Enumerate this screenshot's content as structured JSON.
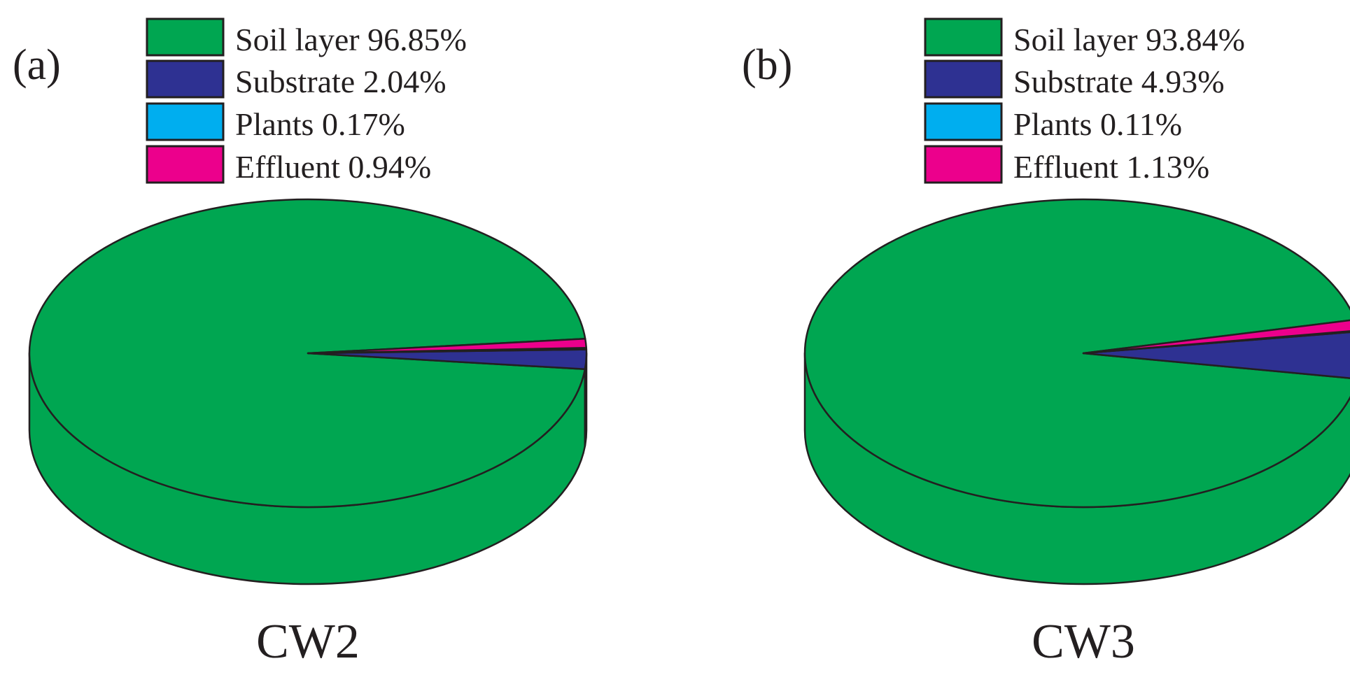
{
  "chart_data": [
    {
      "type": "pie",
      "panel_label": "(a)",
      "caption": "CW2",
      "slices": [
        {
          "label": "Soil layer",
          "value": 96.85,
          "legend_text": "Soil layer 96.85%",
          "color": "#00a651"
        },
        {
          "label": "Substrate",
          "value": 2.04,
          "legend_text": "Substrate 2.04%",
          "color": "#2e3192"
        },
        {
          "label": "Plants",
          "value": 0.17,
          "legend_text": "Plants 0.17%",
          "color": "#00aeef"
        },
        {
          "label": "Effluent",
          "value": 0.94,
          "legend_text": "Effluent 0.94%",
          "color": "#ec008c"
        }
      ],
      "legend_position": "top"
    },
    {
      "type": "pie",
      "panel_label": "(b)",
      "caption": "CW3",
      "slices": [
        {
          "label": "Soil layer",
          "value": 93.84,
          "legend_text": "Soil layer 93.84%",
          "color": "#00a651"
        },
        {
          "label": "Substrate",
          "value": 4.93,
          "legend_text": "Substrate 4.93%",
          "color": "#2e3192"
        },
        {
          "label": "Plants",
          "value": 0.11,
          "legend_text": "Plants 0.11%",
          "color": "#00aeef"
        },
        {
          "label": "Effluent",
          "value": 1.13,
          "legend_text": "Effluent 1.13%",
          "color": "#ec008c"
        }
      ],
      "legend_position": "top"
    }
  ]
}
